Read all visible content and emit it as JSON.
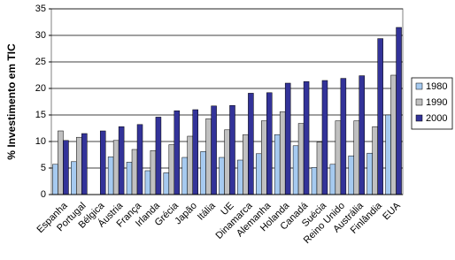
{
  "chart_data": {
    "type": "bar",
    "y_label": "% Investimento em TIC",
    "categories": [
      "Espanha",
      "Portugal",
      "Bélgica",
      "Áustria",
      "França",
      "Irlanda",
      "Grécia",
      "Japão",
      "Itália",
      "UE",
      "Dinamarca",
      "Alemanha",
      "Holanda",
      "Canadá",
      "Suécia",
      "Reino Unido",
      "Austrália",
      "Finlândia",
      "EUA"
    ],
    "series": [
      {
        "name": "1980",
        "color": "#a6caf0",
        "values": [
          5.7,
          6.2,
          null,
          7.1,
          6.1,
          4.5,
          4.1,
          7.0,
          8.1,
          7.0,
          6.5,
          7.7,
          11.3,
          9.2,
          5.1,
          5.7,
          7.3,
          7.8,
          15.0
        ]
      },
      {
        "name": "1990",
        "color": "#c0c0c0",
        "values": [
          12.0,
          10.8,
          null,
          10.2,
          8.5,
          8.3,
          9.4,
          11.0,
          14.3,
          12.2,
          11.3,
          13.9,
          15.6,
          13.4,
          9.9,
          13.9,
          13.9,
          12.8,
          22.5
        ]
      },
      {
        "name": "2000",
        "color": "#333399",
        "values": [
          10.2,
          11.5,
          12.0,
          12.8,
          13.2,
          14.6,
          15.8,
          16.0,
          16.7,
          16.8,
          19.1,
          19.2,
          21.0,
          21.3,
          21.5,
          21.9,
          22.4,
          29.4,
          31.5
        ]
      }
    ],
    "ylim": [
      0,
      35
    ],
    "yticks": [
      0,
      5,
      10,
      15,
      20,
      25,
      30,
      35
    ],
    "grid": true,
    "legend": "right"
  }
}
